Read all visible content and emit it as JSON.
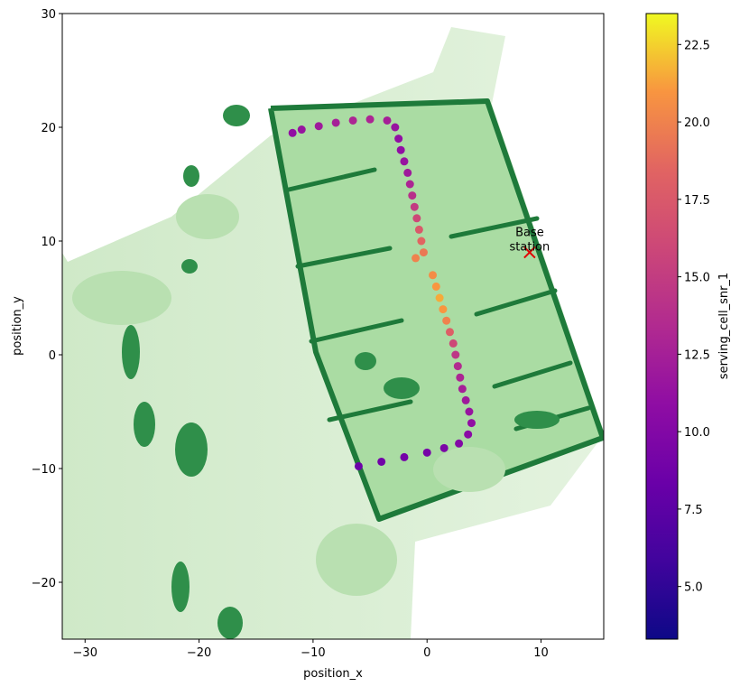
{
  "chart_data": {
    "type": "scatter",
    "xlabel": "position_x",
    "ylabel": "position_y",
    "xlim": [
      -32,
      15.5
    ],
    "ylim": [
      -25,
      30
    ],
    "xticks": [
      -30,
      -20,
      -10,
      0,
      10
    ],
    "yticks": [
      -20,
      -10,
      0,
      10,
      20,
      30
    ],
    "xtick_labels": [
      "−30",
      "−20",
      "−10",
      "0",
      "10"
    ],
    "ytick_labels": [
      "−20",
      "−10",
      "0",
      "10",
      "20",
      "30"
    ],
    "grid": false,
    "background_map": "green occupancy map of a building (walls and obstacles in dark green)",
    "colormap": "plasma",
    "colorbar": {
      "label": "serving_cell_snr_1",
      "range": [
        3.3,
        23.5
      ],
      "ticks": [
        5.0,
        7.5,
        10.0,
        12.5,
        15.0,
        17.5,
        20.0,
        22.5
      ],
      "tick_labels": [
        "5.0",
        "7.5",
        "10.0",
        "12.5",
        "15.0",
        "17.5",
        "20.0",
        "22.5"
      ]
    },
    "trajectory": {
      "points": [
        {
          "x": -6,
          "y": -9.8,
          "snr": 8.5
        },
        {
          "x": -4,
          "y": -9.4,
          "snr": 8.8
        },
        {
          "x": -2,
          "y": -9.0,
          "snr": 9.0
        },
        {
          "x": 0,
          "y": -8.6,
          "snr": 9.2
        },
        {
          "x": 1.5,
          "y": -8.2,
          "snr": 9.5
        },
        {
          "x": 2.8,
          "y": -7.8,
          "snr": 10.0
        },
        {
          "x": 3.6,
          "y": -7.0,
          "snr": 10.5
        },
        {
          "x": 3.9,
          "y": -6.0,
          "snr": 11.0
        },
        {
          "x": 3.7,
          "y": -5.0,
          "snr": 11.5
        },
        {
          "x": 3.4,
          "y": -4.0,
          "snr": 12.0
        },
        {
          "x": 3.1,
          "y": -3.0,
          "snr": 12.5
        },
        {
          "x": 2.9,
          "y": -2.0,
          "snr": 13.0
        },
        {
          "x": 2.7,
          "y": -1.0,
          "snr": 13.5
        },
        {
          "x": 2.5,
          "y": 0.0,
          "snr": 14.5
        },
        {
          "x": 2.3,
          "y": 1.0,
          "snr": 16.0
        },
        {
          "x": 2.0,
          "y": 2.0,
          "snr": 18.0
        },
        {
          "x": 1.7,
          "y": 3.0,
          "snr": 20.0
        },
        {
          "x": 1.4,
          "y": 4.0,
          "snr": 21.0
        },
        {
          "x": 1.1,
          "y": 5.0,
          "snr": 21.5
        },
        {
          "x": 0.8,
          "y": 6.0,
          "snr": 21.0
        },
        {
          "x": 0.5,
          "y": 7.0,
          "snr": 20.5
        },
        {
          "x": -1.0,
          "y": 8.5,
          "snr": 20.0
        },
        {
          "x": -0.3,
          "y": 9.0,
          "snr": 19.5
        },
        {
          "x": -0.5,
          "y": 10.0,
          "snr": 18.5
        },
        {
          "x": -0.7,
          "y": 11.0,
          "snr": 17.5
        },
        {
          "x": -0.9,
          "y": 12.0,
          "snr": 16.0
        },
        {
          "x": -1.1,
          "y": 13.0,
          "snr": 15.0
        },
        {
          "x": -1.3,
          "y": 14.0,
          "snr": 14.0
        },
        {
          "x": -1.5,
          "y": 15.0,
          "snr": 13.0
        },
        {
          "x": -1.7,
          "y": 16.0,
          "snr": 12.0
        },
        {
          "x": -2.0,
          "y": 17.0,
          "snr": 11.5
        },
        {
          "x": -2.3,
          "y": 18.0,
          "snr": 11.0
        },
        {
          "x": -2.5,
          "y": 19.0,
          "snr": 11.0
        },
        {
          "x": -2.8,
          "y": 20.0,
          "snr": 11.5
        },
        {
          "x": -3.5,
          "y": 20.6,
          "snr": 12.5
        },
        {
          "x": -5.0,
          "y": 20.7,
          "snr": 13.0
        },
        {
          "x": -6.5,
          "y": 20.6,
          "snr": 13.0
        },
        {
          "x": -8.0,
          "y": 20.4,
          "snr": 12.5
        },
        {
          "x": -9.5,
          "y": 20.1,
          "snr": 12.0
        },
        {
          "x": -11.0,
          "y": 19.8,
          "snr": 11.5
        },
        {
          "x": -11.8,
          "y": 19.5,
          "snr": 11.0
        }
      ]
    },
    "annotations": [
      {
        "text_lines": [
          "Base",
          "station"
        ],
        "x": 9,
        "y": 9,
        "marker": "x",
        "marker_color": "#e00000"
      }
    ]
  }
}
